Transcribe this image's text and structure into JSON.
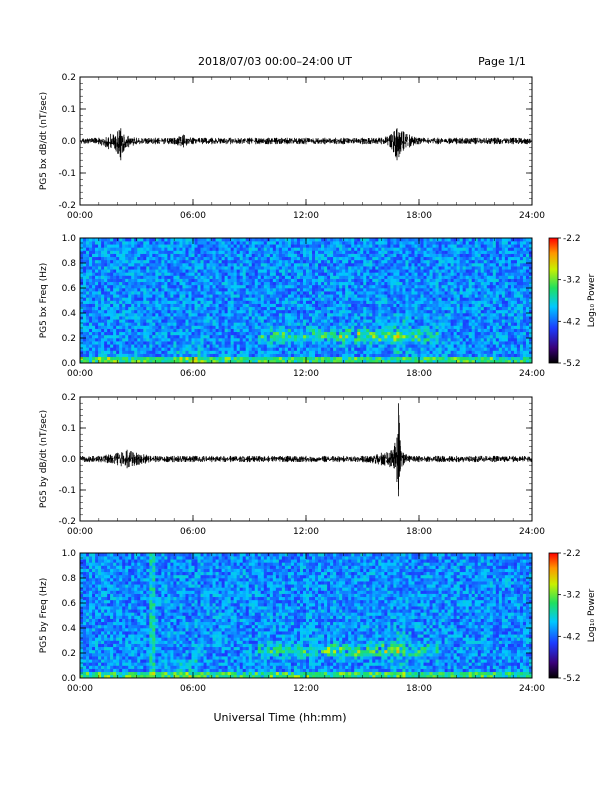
{
  "header": {
    "title": "2018/07/03  00:00–24:00 UT",
    "page": "Page 1/1"
  },
  "chart_data": [
    {
      "type": "line",
      "ylabel": "PG5 bx dB/dt (nT/sec)",
      "ylim": [
        -0.2,
        0.2
      ],
      "yticks": [
        "0.2",
        "0.1",
        "0.0",
        "-0.1",
        "-0.2"
      ],
      "xlim": [
        "00:00",
        "24:00"
      ],
      "xticks": [
        "00:00",
        "06:00",
        "12:00",
        "18:00",
        "24:00"
      ],
      "series": [
        {
          "x": [
            "00:00",
            "01:00",
            "02:00",
            "02:10",
            "02:20",
            "03:00",
            "04:00",
            "05:00",
            "05:30",
            "06:00",
            "07:00",
            "08:00",
            "09:00",
            "10:00",
            "11:00",
            "12:00",
            "13:00",
            "14:00",
            "15:00",
            "16:00",
            "16:30",
            "16:50",
            "17:10",
            "17:30",
            "18:00",
            "19:00",
            "20:00",
            "21:00",
            "22:00",
            "23:00",
            "24:00"
          ],
          "y_min": [
            -0.01,
            -0.01,
            -0.04,
            -0.06,
            -0.03,
            -0.01,
            -0.01,
            -0.01,
            -0.02,
            -0.01,
            -0.01,
            -0.01,
            -0.01,
            -0.01,
            -0.01,
            -0.01,
            -0.01,
            -0.01,
            -0.01,
            -0.01,
            -0.02,
            -0.06,
            -0.03,
            -0.02,
            -0.01,
            -0.01,
            -0.01,
            -0.01,
            -0.01,
            -0.01,
            -0.01
          ],
          "y_max": [
            0.01,
            0.01,
            0.03,
            0.04,
            0.02,
            0.01,
            0.01,
            0.01,
            0.02,
            0.01,
            0.01,
            0.01,
            0.01,
            0.01,
            0.01,
            0.01,
            0.01,
            0.01,
            0.01,
            0.01,
            0.02,
            0.04,
            0.03,
            0.02,
            0.01,
            0.01,
            0.01,
            0.01,
            0.01,
            0.01,
            0.01
          ]
        }
      ]
    },
    {
      "type": "heatmap",
      "ylabel": "PG5 bx Freq (Hz)",
      "ylim": [
        0.0,
        1.0
      ],
      "yticks": [
        "1.0",
        "0.8",
        "0.6",
        "0.4",
        "0.2",
        "0.0"
      ],
      "xlim": [
        "00:00",
        "24:00"
      ],
      "xticks": [
        "00:00",
        "06:00",
        "12:00",
        "18:00",
        "24:00"
      ],
      "colorbar": {
        "label": "Log₁₀ Power",
        "range": [
          -5.2,
          -2.2
        ],
        "ticks": [
          "-2.2",
          "-3.2",
          "-4.2",
          "-5.2"
        ]
      }
    },
    {
      "type": "line",
      "ylabel": "PG5 by dB/dt (nT/sec)",
      "ylim": [
        -0.2,
        0.2
      ],
      "yticks": [
        "0.2",
        "0.1",
        "0.0",
        "-0.1",
        "-0.2"
      ],
      "xlim": [
        "00:00",
        "24:00"
      ],
      "xticks": [
        "00:00",
        "06:00",
        "12:00",
        "18:00",
        "24:00"
      ],
      "series": [
        {
          "x": [
            "00:00",
            "01:00",
            "02:00",
            "02:30",
            "03:00",
            "04:00",
            "05:00",
            "06:00",
            "07:00",
            "08:00",
            "09:00",
            "10:00",
            "11:00",
            "12:00",
            "13:00",
            "14:00",
            "15:00",
            "16:00",
            "16:40",
            "16:55",
            "17:00",
            "17:10",
            "17:30",
            "18:00",
            "19:00",
            "20:00",
            "21:00",
            "22:00",
            "23:00",
            "24:00"
          ],
          "y_min": [
            -0.01,
            -0.01,
            -0.02,
            -0.03,
            -0.02,
            -0.01,
            -0.01,
            -0.01,
            -0.01,
            -0.01,
            -0.01,
            -0.01,
            -0.01,
            -0.01,
            -0.01,
            -0.01,
            -0.01,
            -0.02,
            -0.03,
            -0.12,
            -0.04,
            -0.02,
            -0.01,
            -0.01,
            -0.01,
            -0.01,
            -0.01,
            -0.01,
            -0.01,
            -0.01
          ],
          "y_max": [
            0.01,
            0.01,
            0.02,
            0.03,
            0.02,
            0.01,
            0.01,
            0.01,
            0.01,
            0.01,
            0.01,
            0.01,
            0.01,
            0.01,
            0.01,
            0.01,
            0.01,
            0.02,
            0.03,
            0.18,
            0.06,
            0.02,
            0.01,
            0.01,
            0.01,
            0.01,
            0.01,
            0.01,
            0.01,
            0.01
          ]
        }
      ]
    },
    {
      "type": "heatmap",
      "ylabel": "PG5 by Freq (Hz)",
      "ylim": [
        0.0,
        1.0
      ],
      "yticks": [
        "1.0",
        "0.8",
        "0.6",
        "0.4",
        "0.2",
        "0.0"
      ],
      "xlim": [
        "00:00",
        "24:00"
      ],
      "xticks": [
        "00:00",
        "06:00",
        "12:00",
        "18:00",
        "24:00"
      ],
      "colorbar": {
        "label": "Log₁₀ Power",
        "range": [
          -5.2,
          -2.2
        ],
        "ticks": [
          "-2.2",
          "-3.2",
          "-4.2",
          "-5.2"
        ]
      }
    }
  ],
  "footer": {
    "xlabel": "Universal Time (hh:mm)"
  }
}
